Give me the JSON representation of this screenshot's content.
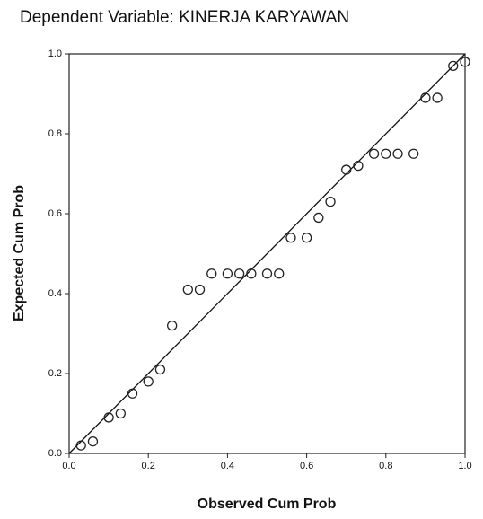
{
  "chart_data": {
    "type": "scatter",
    "title": "Dependent Variable: KINERJA KARYAWAN",
    "x_label": "Observed Cum Prob",
    "y_label": "Expected Cum Prob",
    "x": [
      0.03,
      0.06,
      0.1,
      0.13,
      0.16,
      0.2,
      0.23,
      0.26,
      0.3,
      0.33,
      0.36,
      0.4,
      0.43,
      0.46,
      0.5,
      0.53,
      0.56,
      0.6,
      0.63,
      0.66,
      0.7,
      0.73,
      0.77,
      0.8,
      0.83,
      0.87,
      0.9,
      0.93,
      0.97,
      1.0
    ],
    "values": [
      0.02,
      0.03,
      0.09,
      0.1,
      0.15,
      0.18,
      0.21,
      0.32,
      0.41,
      0.41,
      0.45,
      0.45,
      0.45,
      0.45,
      0.45,
      0.45,
      0.54,
      0.54,
      0.59,
      0.63,
      0.71,
      0.72,
      0.75,
      0.75,
      0.75,
      0.75,
      0.89,
      0.89,
      0.97,
      0.98
    ],
    "xlim": [
      0,
      1
    ],
    "ylim": [
      0,
      1
    ],
    "xticks": [
      {
        "value": 0,
        "label": "0.0"
      },
      {
        "value": 0.2,
        "label": "0.2"
      },
      {
        "value": 0.4,
        "label": "0.4"
      },
      {
        "value": 0.6,
        "label": "0.6"
      },
      {
        "value": 0.8,
        "label": "0.8"
      },
      {
        "value": 1,
        "label": "1.0"
      }
    ],
    "yticks": [
      {
        "value": 0,
        "label": "0.0"
      },
      {
        "value": 0.2,
        "label": "0.2"
      },
      {
        "value": 0.4,
        "label": "0.4"
      },
      {
        "value": 0.6,
        "label": "0.6"
      },
      {
        "value": 0.8,
        "label": "0.8"
      },
      {
        "value": 1,
        "label": "1.0"
      }
    ],
    "color": "#222222",
    "reference_line": true
  }
}
